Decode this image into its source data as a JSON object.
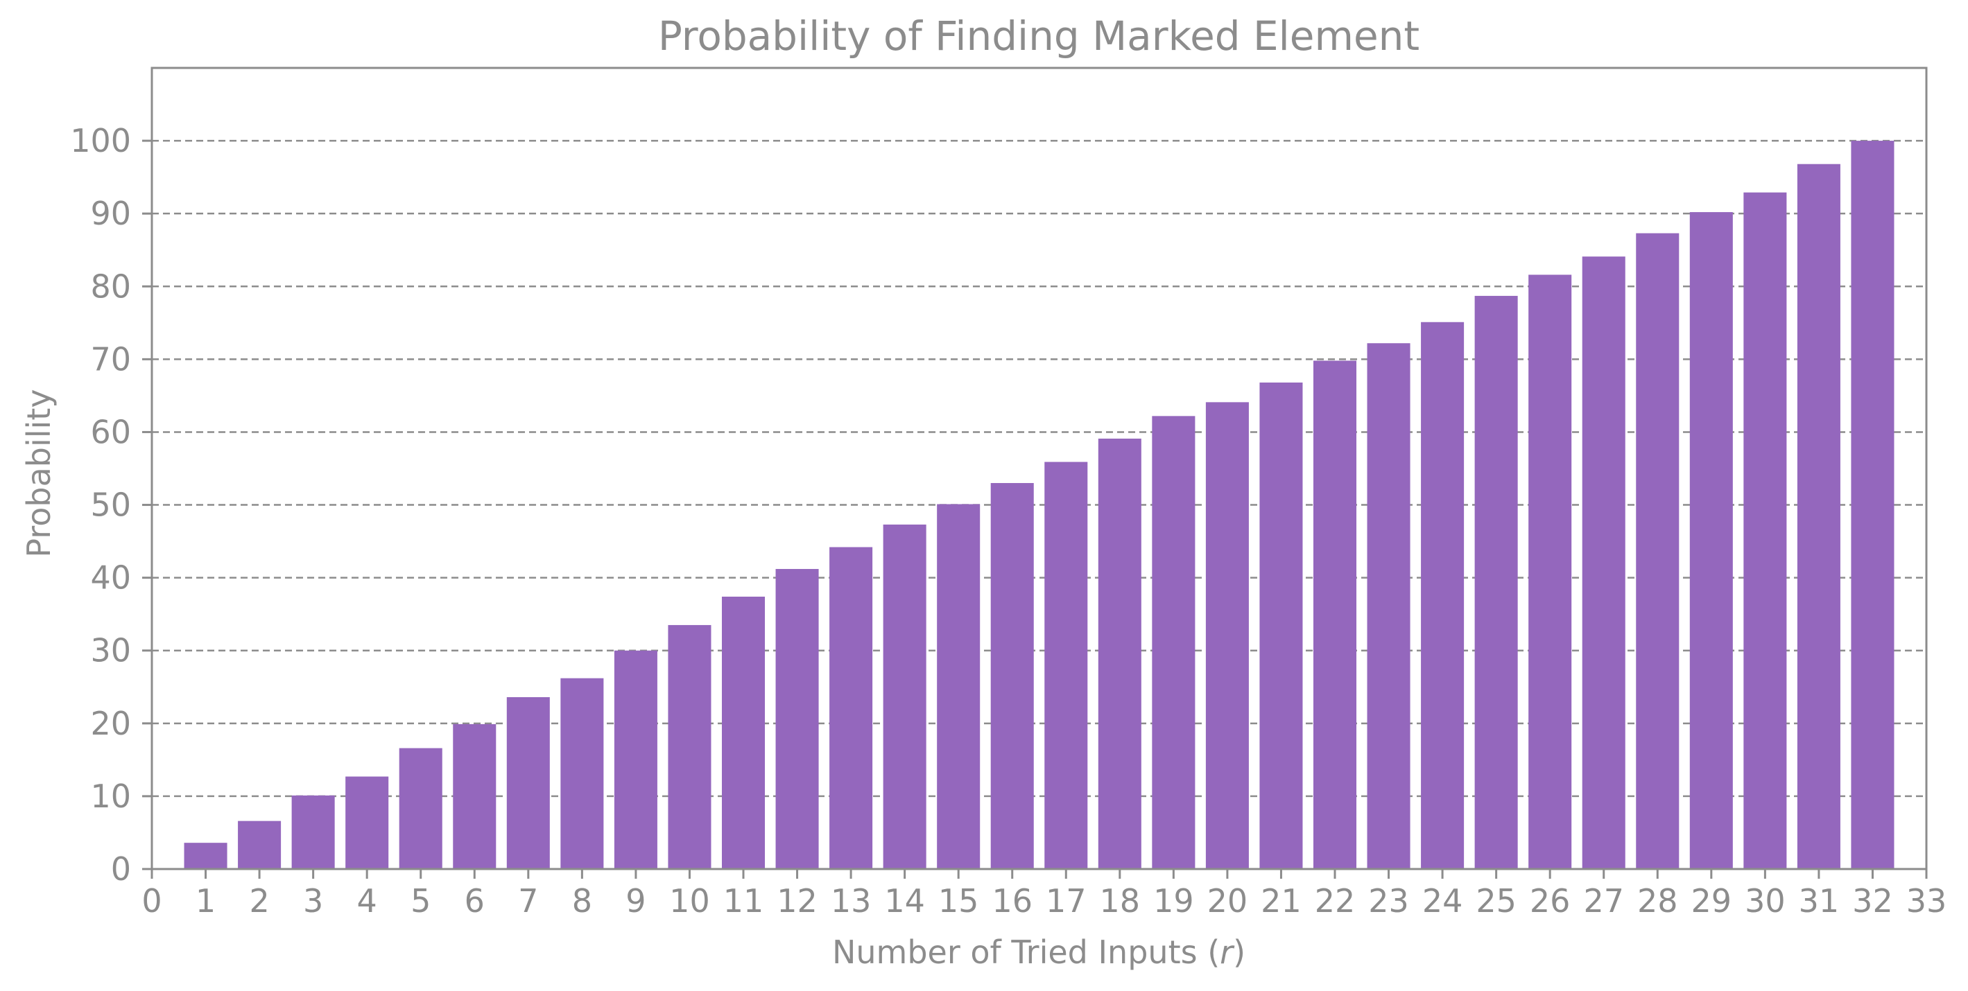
{
  "chart_data": {
    "type": "bar",
    "title": "Probability of Finding Marked Element",
    "xlabel": "Number of Tried Inputs (",
    "xlabel_var": "r",
    "xlabel_suffix": ")",
    "ylabel": "Probability",
    "categories": [
      1,
      2,
      3,
      4,
      5,
      6,
      7,
      8,
      9,
      10,
      11,
      12,
      13,
      14,
      15,
      16,
      17,
      18,
      19,
      20,
      21,
      22,
      23,
      24,
      25,
      26,
      27,
      28,
      29,
      30,
      31,
      32
    ],
    "values": [
      3.6,
      6.6,
      10.1,
      12.7,
      16.6,
      19.9,
      23.6,
      26.2,
      30.0,
      33.5,
      37.4,
      41.2,
      44.2,
      47.3,
      50.1,
      53.0,
      55.9,
      59.1,
      62.2,
      64.1,
      66.8,
      69.8,
      72.2,
      75.1,
      78.7,
      81.6,
      84.1,
      87.3,
      90.2,
      92.9,
      96.8,
      100.0
    ],
    "xlim": [
      0,
      33
    ],
    "ylim": [
      0,
      110
    ],
    "xticks": [
      0,
      1,
      2,
      3,
      4,
      5,
      6,
      7,
      8,
      9,
      10,
      11,
      12,
      13,
      14,
      15,
      16,
      17,
      18,
      19,
      20,
      21,
      22,
      23,
      24,
      25,
      26,
      27,
      28,
      29,
      30,
      31,
      32,
      33
    ],
    "yticks": [
      0,
      10,
      20,
      30,
      40,
      50,
      60,
      70,
      80,
      90,
      100
    ],
    "grid": "horizontal dashed",
    "bar_color": "#9467bd"
  }
}
